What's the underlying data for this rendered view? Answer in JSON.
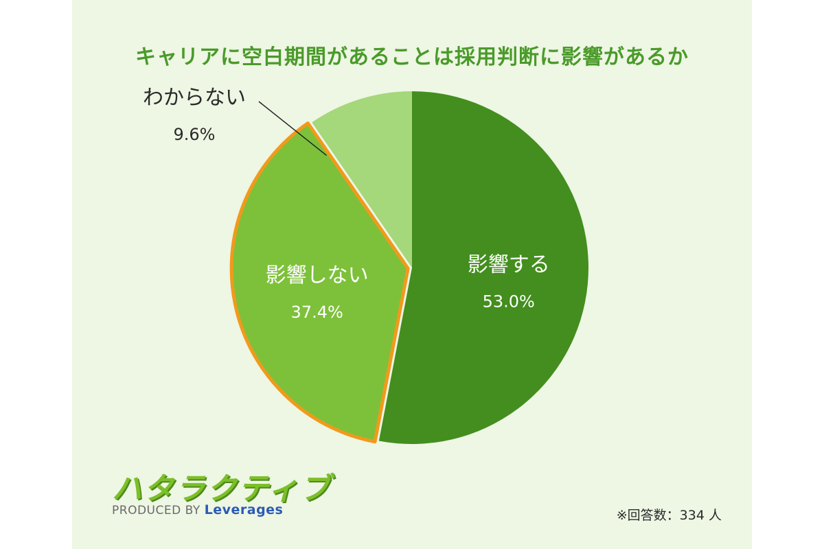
{
  "chart_data": {
    "type": "pie",
    "title": "キャリアに空白期間があることは採用判断に影響があるか",
    "slices": [
      {
        "label": "影響する",
        "value": 53.0,
        "value_label": "53.0%",
        "color": "#438e1e"
      },
      {
        "label": "影響しない",
        "value": 37.4,
        "value_label": "37.4%",
        "color": "#7dc13a",
        "highlight": "#f09a1c"
      },
      {
        "label": "わからない",
        "value": 9.6,
        "value_label": "9.6%",
        "color": "#a5d77b"
      }
    ]
  },
  "logo": {
    "name": "ハタラクティブ",
    "produced_by": "PRODUCED BY",
    "company": "Leverages"
  },
  "footnote": "※回答数：334 人"
}
